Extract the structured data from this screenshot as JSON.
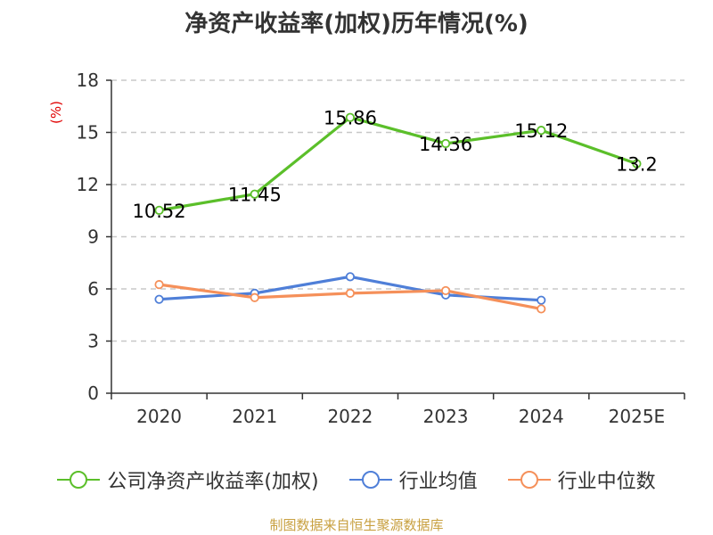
{
  "title": "净资产收益率(加权)历年情况(%)",
  "source": "制图数据来自恒生聚源数据库",
  "colors": {
    "series_0": "#5bbf2a",
    "series_1": "#4f7fd8",
    "series_2": "#f5905a"
  },
  "chart_data": {
    "type": "line",
    "title": "净资产收益率(加权)历年情况(%)",
    "ylabel": "(%)",
    "xlabel": "",
    "categories": [
      "2020",
      "2021",
      "2022",
      "2023",
      "2024",
      "2025E"
    ],
    "ylim": [
      0,
      18
    ],
    "yticks": [
      0,
      3,
      6,
      9,
      12,
      15,
      18
    ],
    "grid": true,
    "legend_position": "bottom",
    "series": [
      {
        "name": "公司净资产收益率(加权)",
        "values": [
          10.52,
          11.45,
          15.86,
          14.36,
          15.12,
          13.2
        ],
        "labels": [
          "10.52",
          "11.45",
          "15.86",
          "14.36",
          "15.12",
          "13.2"
        ]
      },
      {
        "name": "行业均值",
        "values": [
          5.4,
          5.75,
          6.7,
          5.65,
          5.35,
          null
        ]
      },
      {
        "name": "行业中位数",
        "values": [
          6.25,
          5.5,
          5.75,
          5.9,
          4.85,
          null
        ]
      }
    ]
  }
}
